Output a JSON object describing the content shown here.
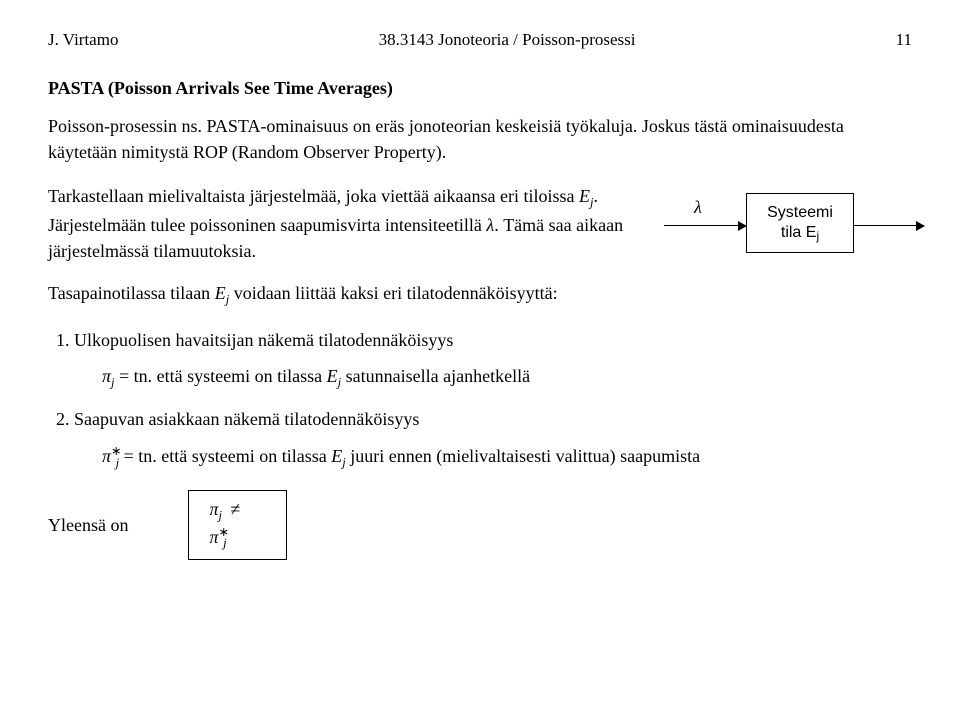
{
  "header": {
    "author": "J. Virtamo",
    "course": "38.3143 Jonoteoria / Poisson-prosessi",
    "page": "11"
  },
  "title": "PASTA (Poisson Arrivals See Time Averages)",
  "para1a": "Poisson-prosessin ns. PASTA-ominaisuus on eräs jonoteorian keskeisiä työkaluja. Joskus tästä ominaisuudesta käytetään nimitystä ROP (Random Observer Property).",
  "para2_left_1": "Tarkastellaan mielivaltaista järjestelmää, joka viettää aikaansa eri tiloissa ",
  "para2_Ej": "E",
  "para2_j": "j",
  "para2_left_2": ".",
  "para2_left_3": "Järjestelmään tulee poissoninen saapumisvirta intensiteetillä ",
  "lambda_sym": "λ",
  "para2_left_4": ". Tämä saa aikaan järjestelmässä tilamuutoksia.",
  "diagram": {
    "lambda": "λ",
    "box_line1": "Systeemi",
    "box_line2_pre": "tila E",
    "box_line2_sub": "j"
  },
  "para3a": "Tasapainotilassa tilaan ",
  "para3_Ej": "E",
  "para3b": " voidaan liittää kaksi eri tilatodennäköisyyttä:",
  "list": {
    "item1": "Ulkopuolisen havaitsijan näkemä tilatodennäköisyys",
    "eq1_pi": "π",
    "eq1_j": "j",
    "eq1_txt": " = tn. että systeemi on tilassa ",
    "eq1_E": "E",
    "eq1_tail": " satunnaisella ajanhetkellä",
    "item2": "Saapuvan asiakkaan näkemä tilatodennäköisyys",
    "eq2_pi": "π",
    "eq2_star": "∗",
    "eq2_j": "j",
    "eq2_txt": " = tn. että systeemi on tilassa ",
    "eq2_E": "E",
    "eq2_tail": " juuri ennen (mielivaltaisesti valittua) saapumista"
  },
  "footer": {
    "label": "Yleensä on",
    "box_pi": "π",
    "box_j1": "j",
    "box_neq": "≠",
    "box_pistar": "π",
    "box_star": "∗",
    "box_j2": "j"
  }
}
